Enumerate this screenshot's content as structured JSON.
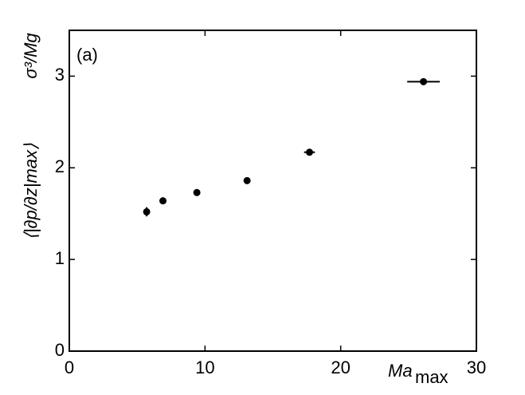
{
  "chart_data": {
    "type": "scatter",
    "annotation": "(a)",
    "xlabel": {
      "main": "Ma",
      "sub": "max"
    },
    "ylabel": {
      "main": "⟨|∂p/∂z|max⟩",
      "factor": "σ³/Mg"
    },
    "x": [
      5.7,
      6.9,
      9.4,
      13.1,
      17.7,
      26.1
    ],
    "y": [
      1.52,
      1.64,
      1.73,
      1.86,
      2.17,
      2.94
    ],
    "xerr": [
      0.1,
      0.1,
      0.1,
      0.1,
      0.4,
      1.2
    ],
    "yerr": [
      0.05,
      0.03,
      0.02,
      0.02,
      0.02,
      0.02
    ],
    "color": "#000000",
    "xlim": [
      0,
      30
    ],
    "xticks": [
      0,
      10,
      20,
      30
    ],
    "ylim": [
      0,
      3.5
    ],
    "yticks": [
      0,
      1,
      2,
      3
    ]
  }
}
